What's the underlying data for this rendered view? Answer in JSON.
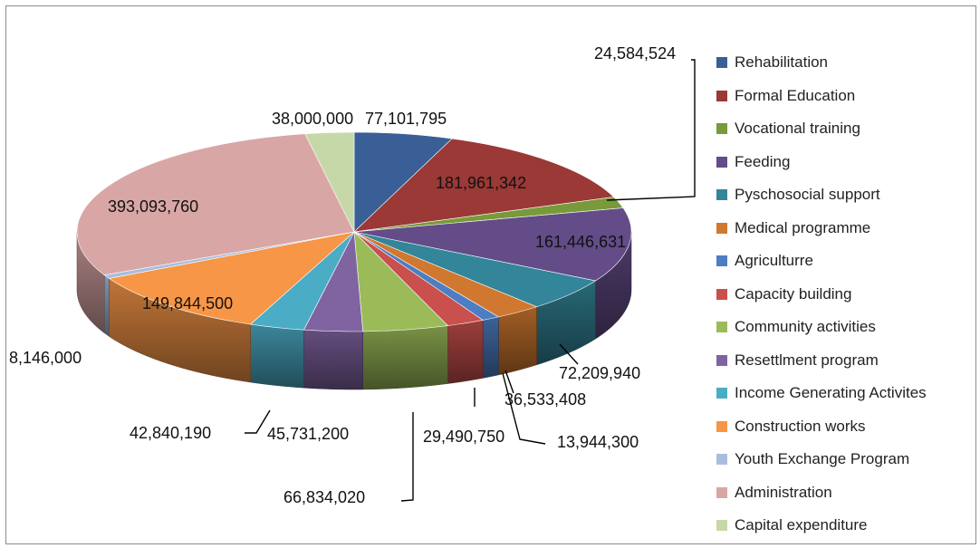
{
  "chart_data": {
    "type": "pie",
    "style": "3d-exploded-none",
    "start_angle_deg": -90,
    "direction": "clockwise",
    "legend_position": "right",
    "slices": [
      {
        "name": "Rehabilitation",
        "value": 77101795,
        "label": "77,101,795",
        "color": "#3A5F96"
      },
      {
        "name": "Formal Education",
        "value": 181961342,
        "label": "181,961,342",
        "color": "#9A3936"
      },
      {
        "name": "Vocational training",
        "value": 24584524,
        "label": "24,584,524",
        "color": "#789A3A"
      },
      {
        "name": "Feeding",
        "value": 161446631,
        "label": "161,446,631",
        "color": "#634C88"
      },
      {
        "name": "Pyschosocial support",
        "value": 72209940,
        "label": "72,209,940",
        "color": "#338599"
      },
      {
        "name": "Medical programme",
        "value": 36533408,
        "label": "36,533,408",
        "color": "#D0782F"
      },
      {
        "name": "Agriculturre",
        "value": 13944300,
        "label": "13,944,300",
        "color": "#4D7DC2"
      },
      {
        "name": "Capacity building",
        "value": 29490750,
        "label": "29,490,750",
        "color": "#C9504C"
      },
      {
        "name": "Community activities",
        "value": 66834020,
        "label": "66,834,020",
        "color": "#9BBB59"
      },
      {
        "name": "Resettlment program",
        "value": 45731200,
        "label": "45,731,200",
        "color": "#8064A2"
      },
      {
        "name": "Income Generating Activites",
        "value": 42840190,
        "label": "42,840,190",
        "color": "#4BACC6"
      },
      {
        "name": "Construction works",
        "value": 149844500,
        "label": "149,844,500",
        "color": "#F79646"
      },
      {
        "name": "Youth Exchange Program",
        "value": 8146000,
        "label": "8,146,000",
        "color": "#A9BEDE"
      },
      {
        "name": "Administration",
        "value": 393093760,
        "label": "393,093,760",
        "color": "#D9A6A6"
      },
      {
        "name": "Capital expenditure",
        "value": 38000000,
        "label": "38,000,000",
        "color": "#C7D8A8"
      }
    ]
  }
}
